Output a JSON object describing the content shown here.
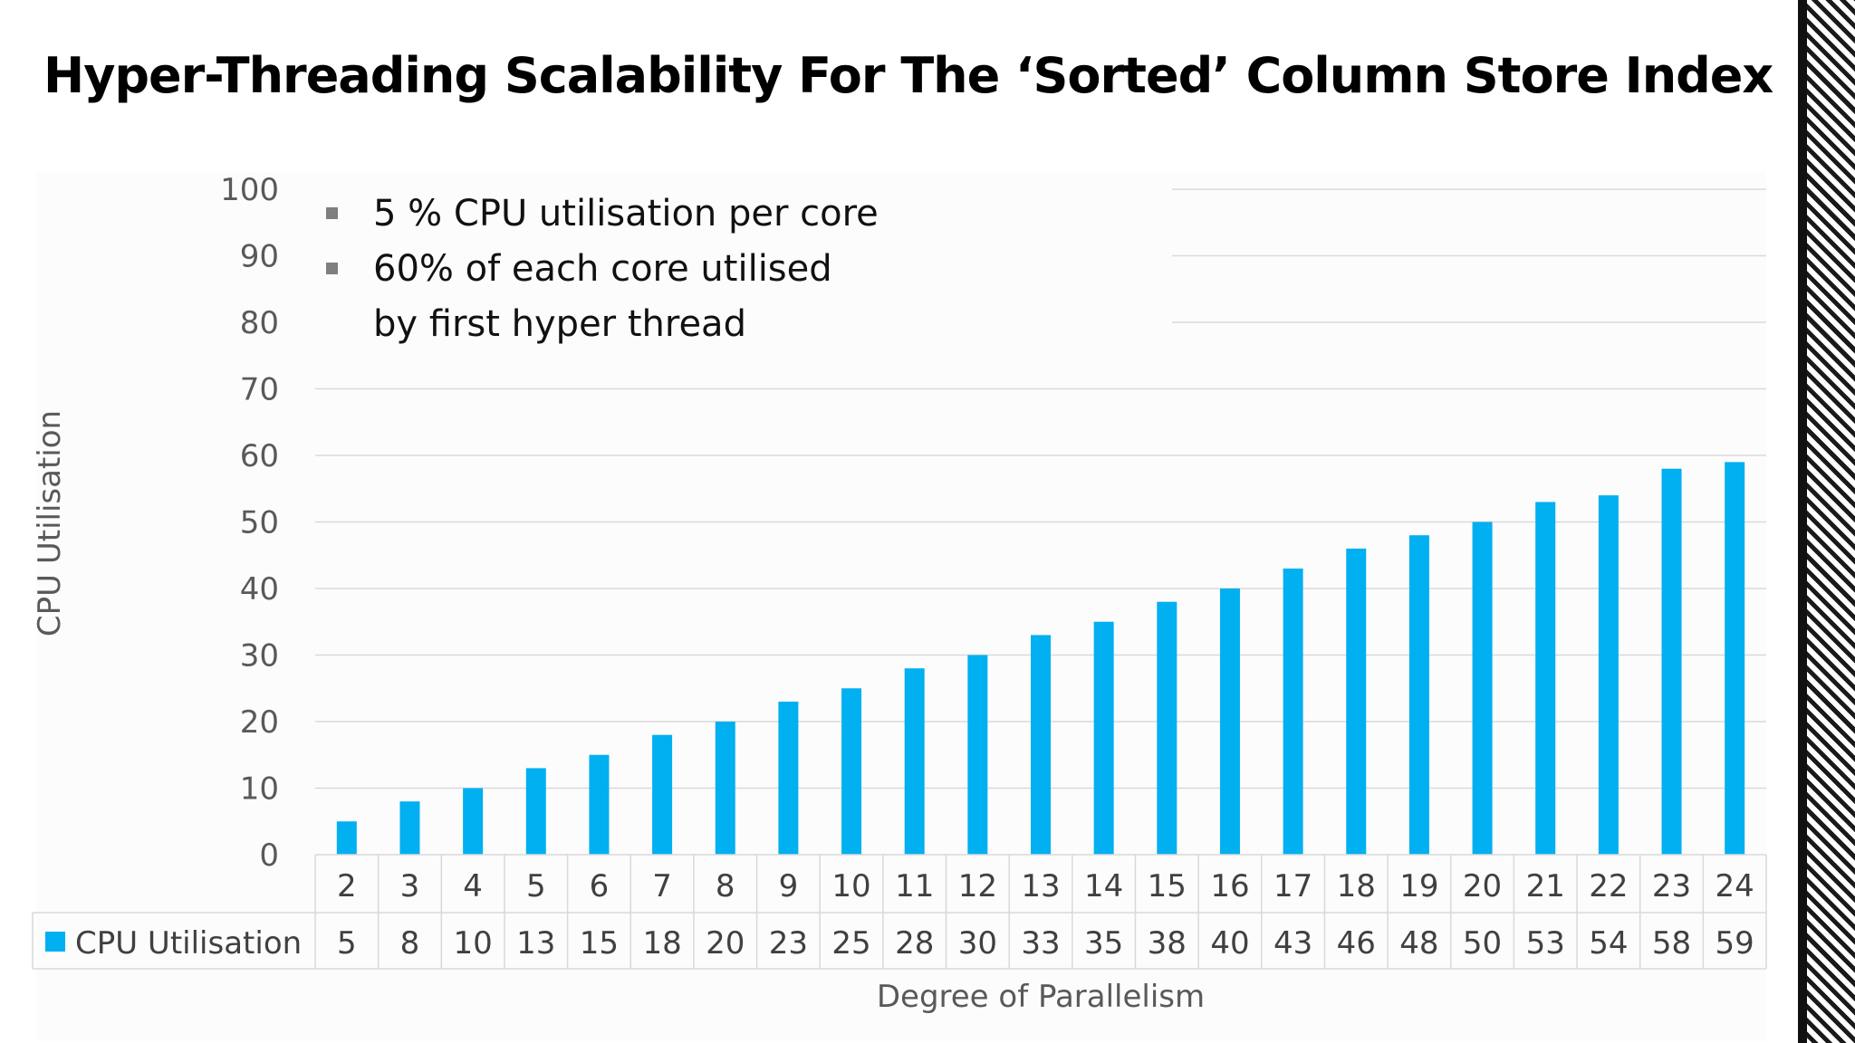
{
  "slide": {
    "title": "Hyper-Threading Scalability For The ‘Sorted’ Column Store Index",
    "bullets": [
      "5 % CPU utilisation per core",
      "60% of each core utilised\nby first hyper thread"
    ]
  },
  "chart_data": {
    "type": "bar",
    "title": "",
    "xlabel": "Degree of Parallelism",
    "ylabel": "CPU Utilisation",
    "ylim": [
      0,
      100
    ],
    "yticks": [
      0,
      10,
      20,
      30,
      40,
      50,
      60,
      70,
      80,
      90,
      100
    ],
    "grid": true,
    "legend": "data-table",
    "categories": [
      "2",
      "3",
      "4",
      "5",
      "6",
      "7",
      "8",
      "9",
      "10",
      "11",
      "12",
      "13",
      "14",
      "15",
      "16",
      "17",
      "18",
      "19",
      "20",
      "21",
      "22",
      "23",
      "24"
    ],
    "series": [
      {
        "name": "CPU Utilisation",
        "color": "#00b0f0",
        "values": [
          5,
          8,
          10,
          13,
          15,
          18,
          20,
          23,
          25,
          28,
          30,
          33,
          35,
          38,
          40,
          43,
          46,
          48,
          50,
          53,
          54,
          58,
          59
        ]
      }
    ]
  }
}
